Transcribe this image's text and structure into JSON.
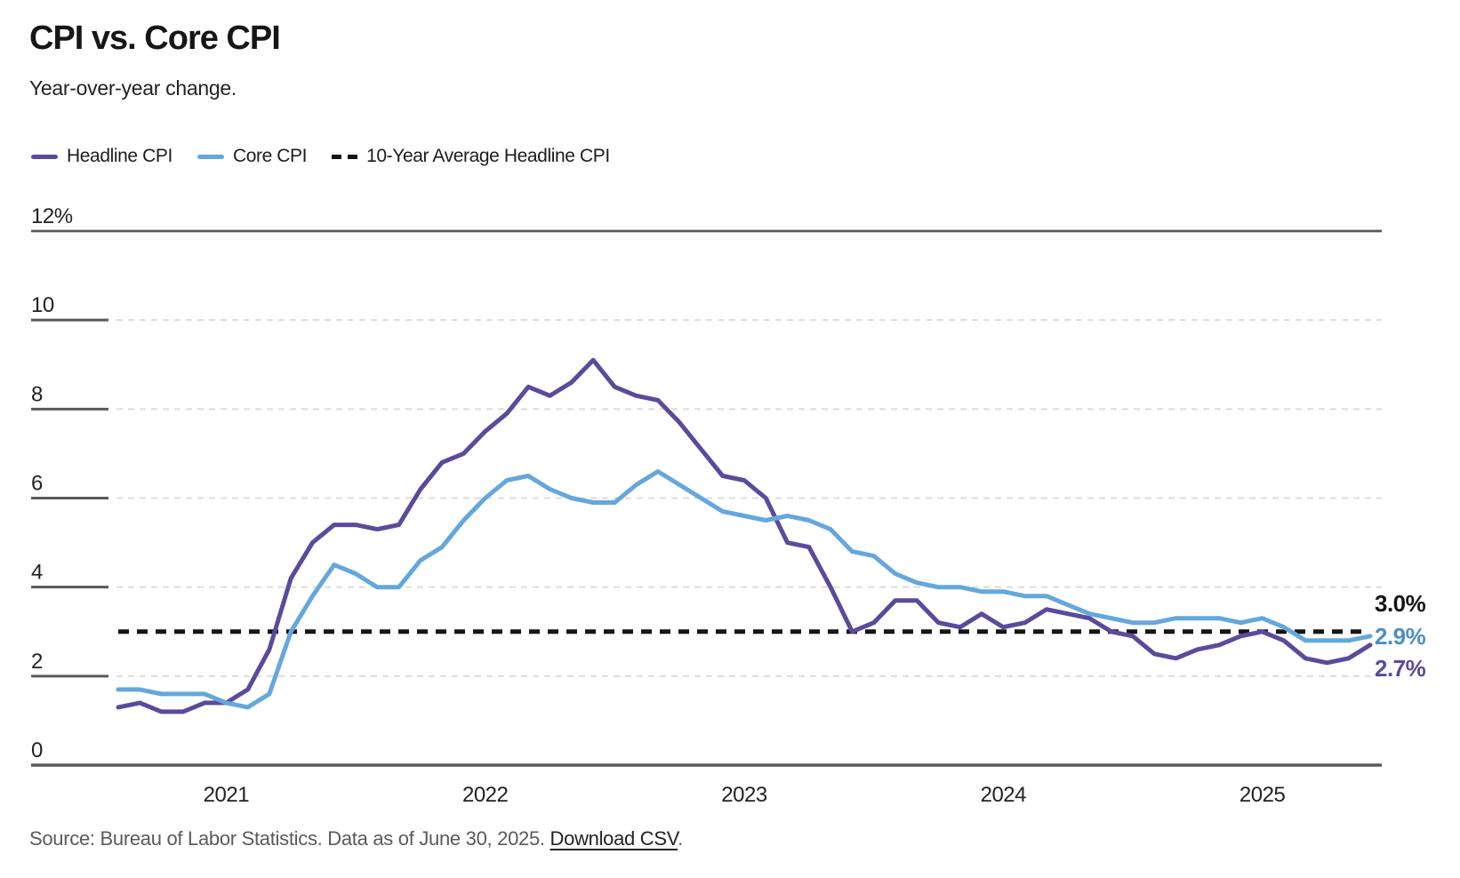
{
  "header": {
    "title": "CPI vs. Core CPI",
    "subtitle": "Year-over-year change."
  },
  "legend": {
    "items": [
      {
        "label": "Headline CPI",
        "style": "line",
        "color": "#5b4a9c"
      },
      {
        "label": "Core CPI",
        "style": "line",
        "color": "#64a7dd"
      },
      {
        "label": "10-Year Average Headline CPI",
        "style": "dashes",
        "color": "#141414"
      }
    ]
  },
  "chart_data": {
    "type": "line",
    "title": "CPI vs. Core CPI",
    "subtitle": "Year-over-year change.",
    "x_frequency": "monthly",
    "x_start": "2020-08",
    "x_end": "2025-06",
    "x_months": [
      "2020-08",
      "2020-09",
      "2020-10",
      "2020-11",
      "2020-12",
      "2021-01",
      "2021-02",
      "2021-03",
      "2021-04",
      "2021-05",
      "2021-06",
      "2021-07",
      "2021-08",
      "2021-09",
      "2021-10",
      "2021-11",
      "2021-12",
      "2022-01",
      "2022-02",
      "2022-03",
      "2022-04",
      "2022-05",
      "2022-06",
      "2022-07",
      "2022-08",
      "2022-09",
      "2022-10",
      "2022-11",
      "2022-12",
      "2023-01",
      "2023-02",
      "2023-03",
      "2023-04",
      "2023-05",
      "2023-06",
      "2023-07",
      "2023-08",
      "2023-09",
      "2023-10",
      "2023-11",
      "2023-12",
      "2024-01",
      "2024-02",
      "2024-03",
      "2024-04",
      "2024-05",
      "2024-06",
      "2024-07",
      "2024-08",
      "2024-09",
      "2024-10",
      "2024-11",
      "2024-12",
      "2025-01",
      "2025-02",
      "2025-03",
      "2025-04",
      "2025-05",
      "2025-06"
    ],
    "x_year_ticks": [
      {
        "label": "2021",
        "month_index": 5
      },
      {
        "label": "2022",
        "month_index": 17
      },
      {
        "label": "2023",
        "month_index": 29
      },
      {
        "label": "2024",
        "month_index": 41
      },
      {
        "label": "2025",
        "month_index": 53
      }
    ],
    "ylim": [
      0,
      12
    ],
    "yticks": [
      {
        "label": "0",
        "value": 0
      },
      {
        "label": "2",
        "value": 2
      },
      {
        "label": "4",
        "value": 4
      },
      {
        "label": "6",
        "value": 6
      },
      {
        "label": "8",
        "value": 8
      },
      {
        "label": "10",
        "value": 10
      },
      {
        "label": "12%",
        "value": 12
      }
    ],
    "grid": "horizontal-dashed",
    "legend_position": "top-left",
    "series": [
      {
        "name": "Headline CPI",
        "color": "#5b4a9c",
        "values": [
          1.3,
          1.4,
          1.2,
          1.2,
          1.4,
          1.4,
          1.7,
          2.6,
          4.2,
          5.0,
          5.4,
          5.4,
          5.3,
          5.4,
          6.2,
          6.8,
          7.0,
          7.5,
          7.9,
          8.5,
          8.3,
          8.6,
          9.1,
          8.5,
          8.3,
          8.2,
          7.7,
          7.1,
          6.5,
          6.4,
          6.0,
          5.0,
          4.9,
          4.0,
          3.0,
          3.2,
          3.7,
          3.7,
          3.2,
          3.1,
          3.4,
          3.1,
          3.2,
          3.5,
          3.4,
          3.3,
          3.0,
          2.9,
          2.5,
          2.4,
          2.6,
          2.7,
          2.9,
          3.0,
          2.8,
          2.4,
          2.3,
          2.4,
          2.7
        ]
      },
      {
        "name": "Core CPI",
        "color": "#64a7dd",
        "values": [
          1.7,
          1.7,
          1.6,
          1.6,
          1.6,
          1.4,
          1.3,
          1.6,
          3.0,
          3.8,
          4.5,
          4.3,
          4.0,
          4.0,
          4.6,
          4.9,
          5.5,
          6.0,
          6.4,
          6.5,
          6.2,
          6.0,
          5.9,
          5.9,
          6.3,
          6.6,
          6.3,
          6.0,
          5.7,
          5.6,
          5.5,
          5.6,
          5.5,
          5.3,
          4.8,
          4.7,
          4.3,
          4.1,
          4.0,
          4.0,
          3.9,
          3.9,
          3.8,
          3.8,
          3.6,
          3.4,
          3.3,
          3.2,
          3.2,
          3.3,
          3.3,
          3.3,
          3.2,
          3.3,
          3.1,
          2.8,
          2.8,
          2.8,
          2.9
        ]
      }
    ],
    "reference_line": {
      "label": "10-Year Average Headline CPI",
      "value": 3.0,
      "color": "#141414",
      "style": "dashed"
    },
    "end_labels": [
      {
        "text": "3.0%",
        "color": "#141414"
      },
      {
        "text": "2.9%",
        "color": "#4d8fc4"
      },
      {
        "text": "2.7%",
        "color": "#5b4a9c"
      }
    ]
  },
  "source": {
    "prefix": "Source: Bureau of Labor Statistics. Data as of June 30, 2025. ",
    "link_label": "Download CSV",
    "suffix": "."
  }
}
